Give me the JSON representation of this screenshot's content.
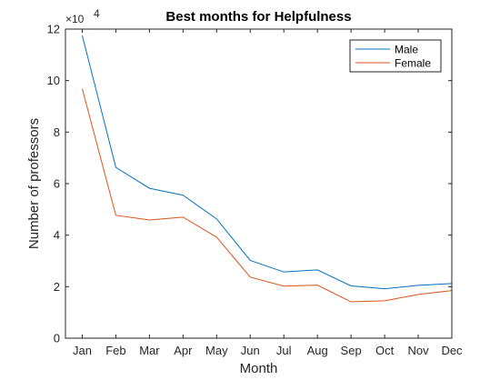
{
  "chart_data": {
    "type": "line",
    "title": "Best months for Helpfulness",
    "xlabel": "Month",
    "ylabel": "Number of professors",
    "categories": [
      "Jan",
      "Feb",
      "Mar",
      "Apr",
      "May",
      "Jun",
      "Jul",
      "Aug",
      "Sep",
      "Oct",
      "Nov",
      "Dec"
    ],
    "series": [
      {
        "name": "Male",
        "color": "#0072BD",
        "values": [
          117500,
          66300,
          58200,
          55500,
          46300,
          30200,
          25700,
          26500,
          20300,
          19200,
          20500,
          21200
        ]
      },
      {
        "name": "Female",
        "color": "#D95319",
        "values": [
          96800,
          47700,
          45900,
          47000,
          39200,
          23700,
          20200,
          20600,
          14100,
          14500,
          17000,
          18500
        ]
      }
    ],
    "ylim": [
      0,
      120000
    ],
    "yticks": [
      0,
      20000,
      40000,
      60000,
      80000,
      100000,
      120000
    ],
    "ytick_labels": [
      "0",
      "2",
      "4",
      "6",
      "8",
      "10",
      "12"
    ],
    "y_exponent_base": "×10",
    "y_exponent_power": "4",
    "xlim": [
      -0.5,
      11
    ],
    "grid": false,
    "legend": "top-right"
  }
}
